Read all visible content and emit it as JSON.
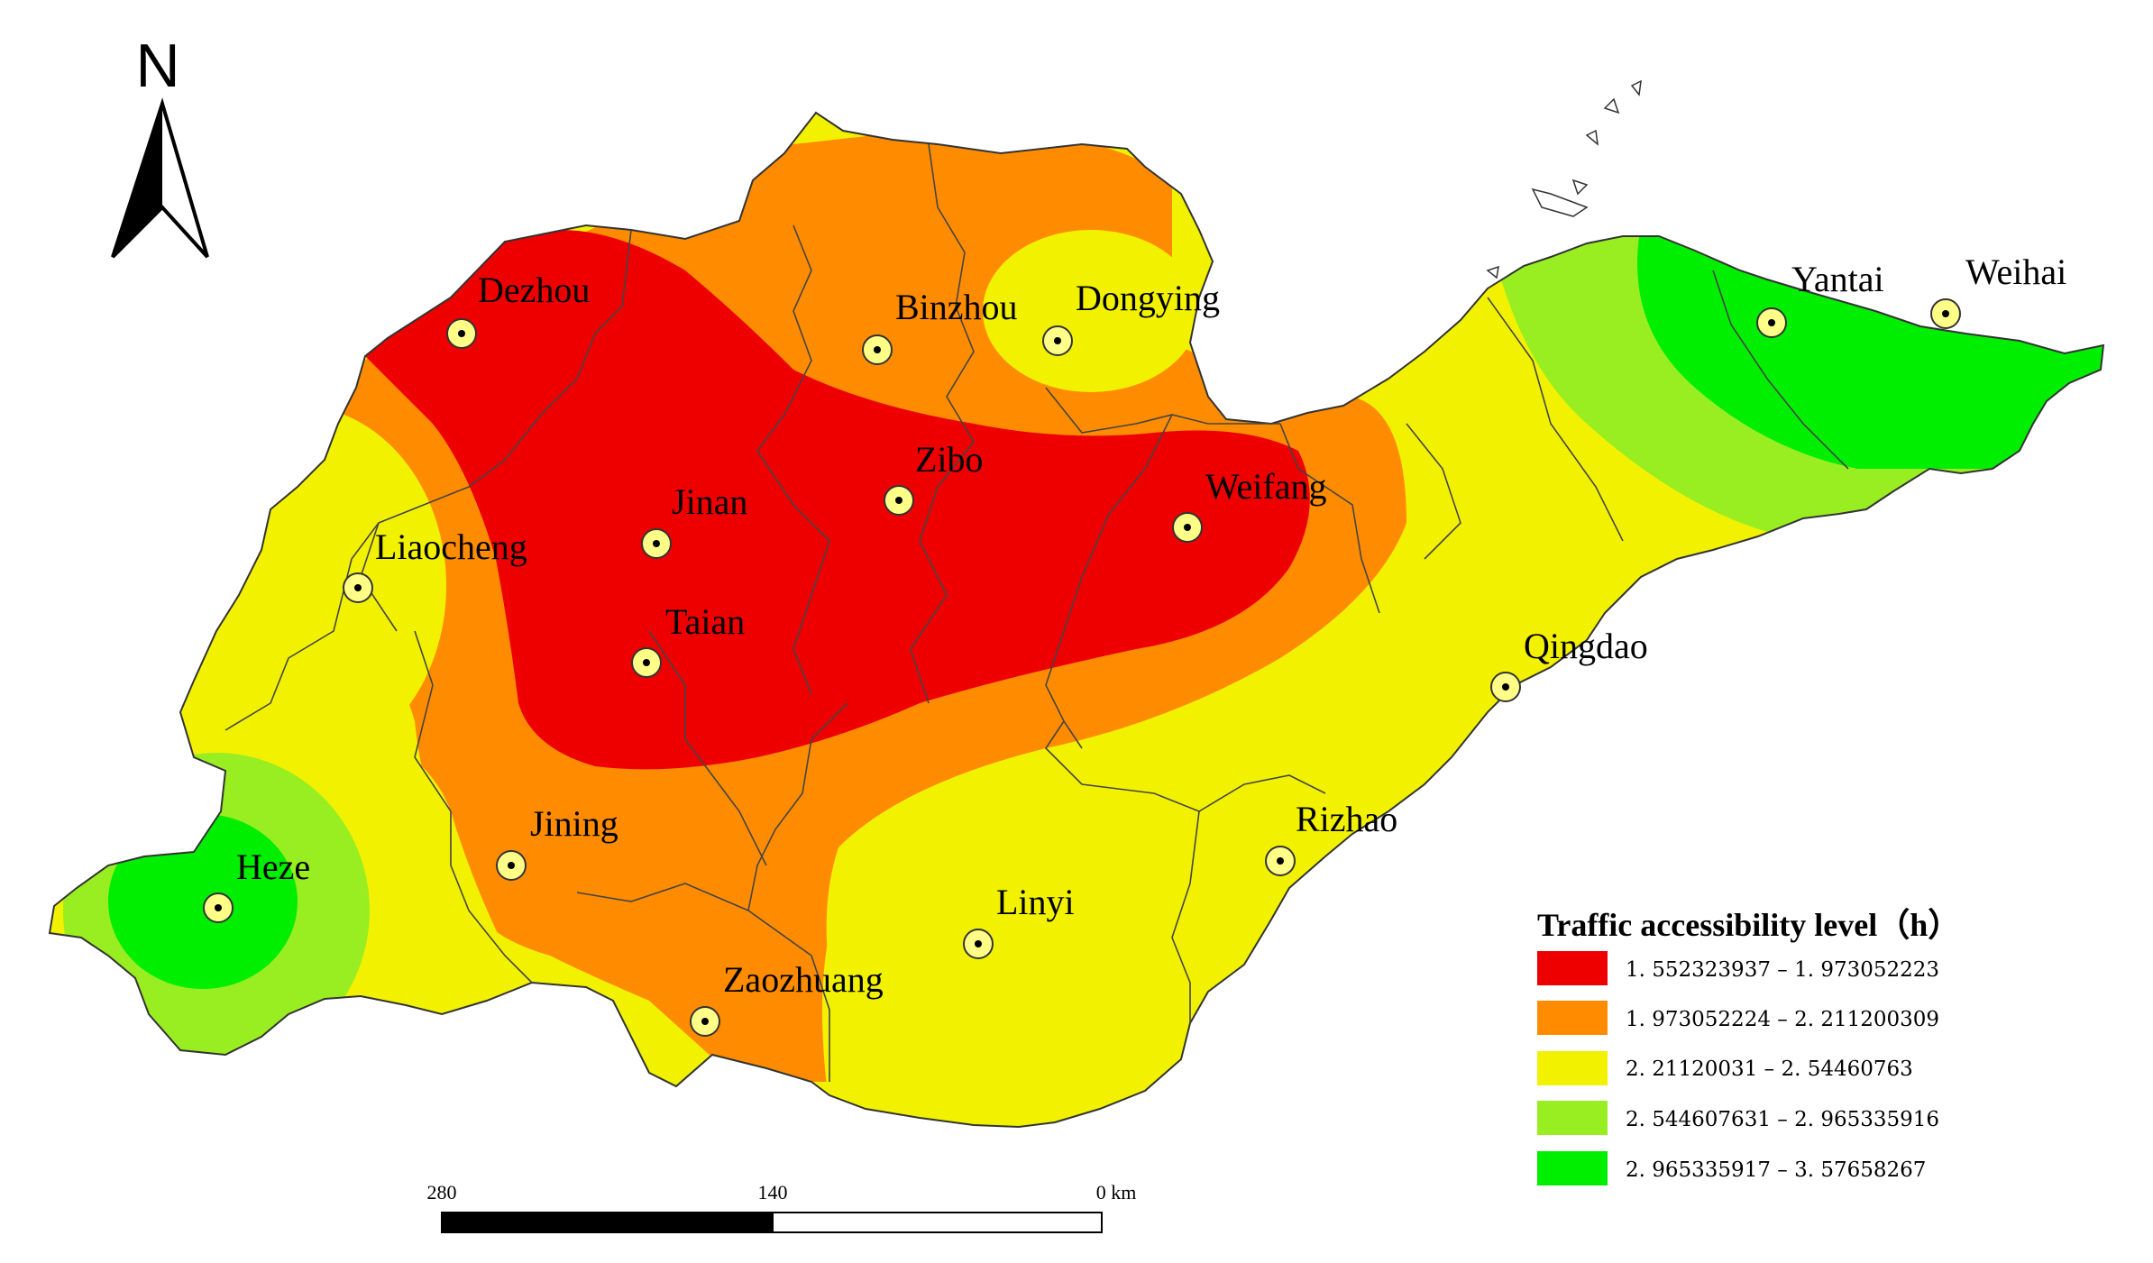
{
  "map": {
    "north_label": "N",
    "cities": [
      {
        "id": "dezhou",
        "name": "Dezhou"
      },
      {
        "id": "binzhou",
        "name": "Binzhou"
      },
      {
        "id": "dongying",
        "name": "Dongying"
      },
      {
        "id": "yantai",
        "name": "Yantai"
      },
      {
        "id": "weihai",
        "name": "Weihai"
      },
      {
        "id": "zibo",
        "name": "Zibo"
      },
      {
        "id": "jinan",
        "name": "Jinan"
      },
      {
        "id": "weifang",
        "name": "Weifang"
      },
      {
        "id": "liaocheng",
        "name": "Liaocheng"
      },
      {
        "id": "taian",
        "name": "Taian"
      },
      {
        "id": "qingdao",
        "name": "Qingdao"
      },
      {
        "id": "jining",
        "name": "Jining"
      },
      {
        "id": "rizhao",
        "name": "Rizhao"
      },
      {
        "id": "heze",
        "name": "Heze"
      },
      {
        "id": "linyi",
        "name": "Linyi"
      },
      {
        "id": "zaozhuang",
        "name": "Zaozhuang"
      }
    ],
    "scale_bar": {
      "labels": [
        "280",
        "140",
        "0 km"
      ]
    },
    "legend": {
      "title": "Traffic accessibility level（h）",
      "classes": [
        {
          "label": "1. 552323937 – 1. 973052223",
          "color": "#ee0000"
        },
        {
          "label": "1. 973052224 – 2. 211200309",
          "color": "#ff8c00"
        },
        {
          "label": "2. 21120031 – 2. 54460763",
          "color": "#f2f200"
        },
        {
          "label": "2. 544607631 – 2. 965335916",
          "color": "#99ee22"
        },
        {
          "label": "2. 965335917 – 3. 57658267",
          "color": "#00ee00"
        }
      ]
    }
  }
}
